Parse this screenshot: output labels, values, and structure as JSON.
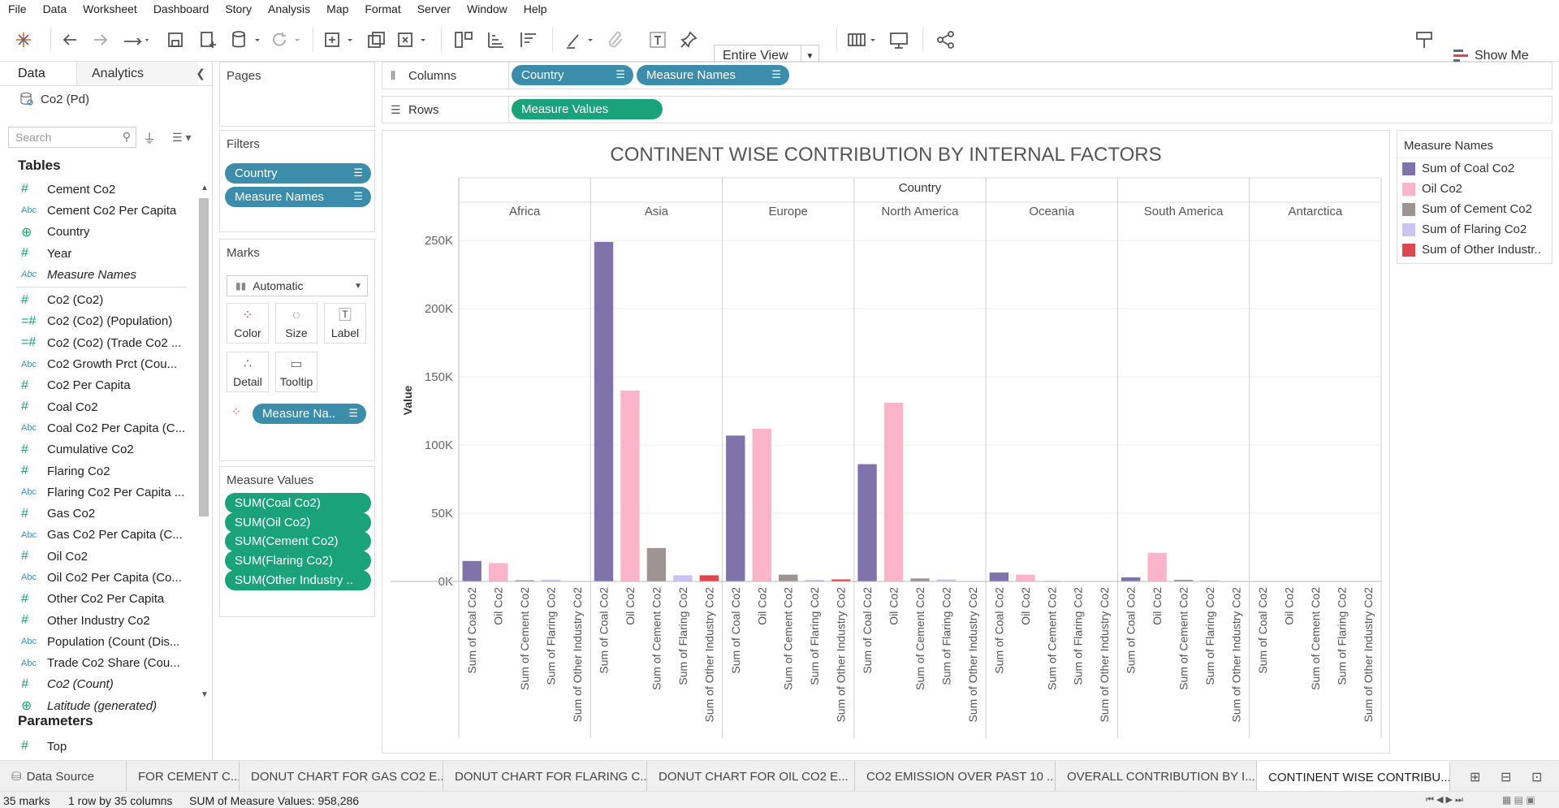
{
  "menu": [
    "File",
    "Data",
    "Worksheet",
    "Dashboard",
    "Story",
    "Analysis",
    "Map",
    "Format",
    "Server",
    "Window",
    "Help"
  ],
  "toolbar": {
    "view_select": "Entire View",
    "show_me": "Show Me"
  },
  "datapane": {
    "tab_data": "Data",
    "tab_analytics": "Analytics",
    "datasource": "Co2 (Pd)",
    "search_placeholder": "Search",
    "tables_heading": "Tables",
    "fields": [
      {
        "type": "#",
        "name": "Cement Co2"
      },
      {
        "type": "Abc",
        "name": "Cement Co2 Per Capita"
      },
      {
        "type": "globe",
        "name": "Country"
      },
      {
        "type": "#",
        "name": "Year"
      },
      {
        "type": "Abc",
        "name": "Measure Names",
        "italic": true
      },
      {
        "type": "#",
        "name": "Co2 (Co2)"
      },
      {
        "type": "=#",
        "name": "Co2 (Co2) (Population)"
      },
      {
        "type": "=#",
        "name": "Co2 (Co2) (Trade Co2 ..."
      },
      {
        "type": "Abc",
        "name": "Co2 Growth Prct (Cou..."
      },
      {
        "type": "#",
        "name": "Co2 Per Capita"
      },
      {
        "type": "#",
        "name": "Coal Co2"
      },
      {
        "type": "Abc",
        "name": "Coal Co2 Per Capita (C..."
      },
      {
        "type": "#",
        "name": "Cumulative Co2"
      },
      {
        "type": "#",
        "name": "Flaring Co2"
      },
      {
        "type": "Abc",
        "name": "Flaring Co2 Per Capita ..."
      },
      {
        "type": "#",
        "name": "Gas Co2"
      },
      {
        "type": "Abc",
        "name": "Gas Co2 Per Capita (C..."
      },
      {
        "type": "#",
        "name": "Oil Co2"
      },
      {
        "type": "Abc",
        "name": "Oil Co2 Per Capita (Co..."
      },
      {
        "type": "#",
        "name": "Other Co2 Per Capita"
      },
      {
        "type": "#",
        "name": "Other Industry Co2"
      },
      {
        "type": "Abc",
        "name": "Population (Count (Dis..."
      },
      {
        "type": "Abc",
        "name": "Trade Co2 Share (Cou..."
      },
      {
        "type": "#",
        "name": "Co2 (Count)",
        "italic": true
      },
      {
        "type": "globe",
        "name": "Latitude (generated)",
        "italic": true
      }
    ],
    "parameters_heading": "Parameters",
    "parameters": [
      {
        "type": "#",
        "name": "Top"
      }
    ]
  },
  "pages": {
    "title": "Pages"
  },
  "filters": {
    "title": "Filters",
    "pills": [
      "Country",
      "Measure Names"
    ]
  },
  "marks": {
    "title": "Marks",
    "type": "Automatic",
    "buttons": [
      "Color",
      "Size",
      "Label",
      "Detail",
      "Tooltip"
    ],
    "color_pill": "Measure Na.."
  },
  "measure_values": {
    "title": "Measure Values",
    "pills": [
      "SUM(Coal Co2)",
      "SUM(Oil Co2)",
      "SUM(Cement Co2)",
      "SUM(Flaring Co2)",
      "SUM(Other Industry .."
    ]
  },
  "shelves": {
    "columns_label": "Columns",
    "columns": [
      "Country",
      "Measure Names"
    ],
    "rows_label": "Rows",
    "rows": [
      "Measure Values"
    ]
  },
  "legend": {
    "title": "Measure Names",
    "items": [
      {
        "label": "Sum of Coal Co2",
        "color": "#8073ac"
      },
      {
        "label": "Oil Co2",
        "color": "#fbb4c9"
      },
      {
        "label": "Sum of Cement Co2",
        "color": "#9e9494"
      },
      {
        "label": "Sum of Flaring Co2",
        "color": "#c9c5f0"
      },
      {
        "label": "Sum of Other Industr..",
        "color": "#e0464e"
      }
    ]
  },
  "chart_data": {
    "type": "bar",
    "title": "CONTINENT WISE CONTRIBUTION BY INTERNAL FACTORS",
    "column_header": "Country",
    "ylabel": "Value",
    "ylim": [
      0,
      265000
    ],
    "yticks": [
      0,
      50000,
      100000,
      150000,
      200000,
      250000
    ],
    "ytick_labels": [
      "0K",
      "50K",
      "100K",
      "150K",
      "200K",
      "250K"
    ],
    "panels": [
      "Africa",
      "Asia",
      "Europe",
      "North America",
      "Oceania",
      "South America",
      "Antarctica"
    ],
    "categories": [
      "Sum of Coal Co2",
      "Oil Co2",
      "Sum of Cement Co2",
      "Sum of Flaring Co2",
      "Sum of Other Industry Co2"
    ],
    "series_colors": [
      "#8073ac",
      "#fbb4c9",
      "#9e9494",
      "#c9c5f0",
      "#e0464e"
    ],
    "values": [
      [
        15000,
        13500,
        900,
        1300,
        200
      ],
      [
        249000,
        140000,
        24500,
        4500,
        4500
      ],
      [
        107000,
        112000,
        5000,
        1200,
        1500
      ],
      [
        86000,
        131000,
        2200,
        1500,
        300
      ],
      [
        6500,
        5000,
        400,
        100,
        0
      ],
      [
        3000,
        21000,
        1200,
        800,
        100
      ],
      [
        0,
        0,
        0,
        0,
        0
      ]
    ]
  },
  "sheet_tabs": [
    "Data Source",
    "FOR CEMENT C...",
    "DONUT CHART FOR GAS CO2 E...",
    "DONUT CHART FOR FLARING C...",
    "DONUT CHART FOR OIL CO2 E...",
    "CO2 EMISSION OVER PAST 10 ...",
    "OVERALL CONTRIBUTION BY I...",
    "CONTINENT WISE CONTRIBU..."
  ],
  "status": {
    "marks": "35 marks",
    "rows_cols": "1 row by 35 columns",
    "sum": "SUM of Measure Values: 958,286"
  }
}
